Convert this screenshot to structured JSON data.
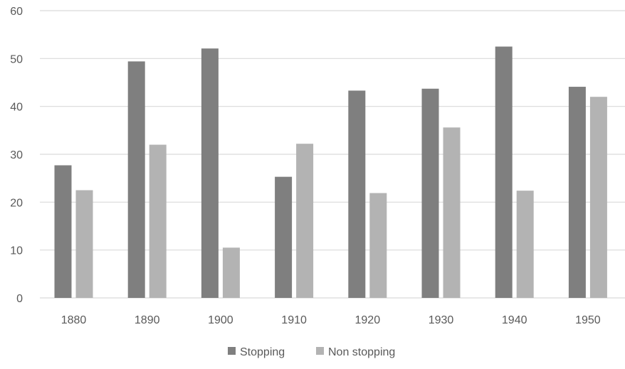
{
  "chart_data": {
    "type": "bar",
    "title": "",
    "xlabel": "",
    "ylabel": "",
    "categories": [
      "1880",
      "1890",
      "1900",
      "1910",
      "1920",
      "1930",
      "1940",
      "1950"
    ],
    "series": [
      {
        "name": "Stopping",
        "color": "#7f7f7f",
        "values": [
          27.7,
          49.4,
          52.1,
          25.3,
          43.3,
          43.7,
          52.5,
          44.1
        ]
      },
      {
        "name": "Non stopping",
        "color": "#b3b3b3",
        "values": [
          22.5,
          32.0,
          10.5,
          32.2,
          21.9,
          35.6,
          22.4,
          42.0
        ]
      }
    ],
    "ylim": [
      0,
      60
    ],
    "yticks": [
      "0",
      "10",
      "20",
      "30",
      "40",
      "50",
      "60"
    ],
    "grid": true,
    "gridline_color": "#d9d9d9",
    "legend_position": "bottom"
  }
}
